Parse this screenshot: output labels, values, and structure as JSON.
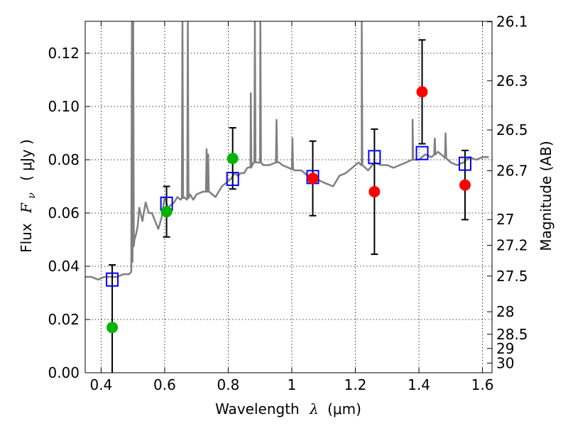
{
  "chart_data": {
    "type": "scatter",
    "x_axis": {
      "label": "Wavelength",
      "symbol": "λ",
      "unit": "(μm)",
      "range": [
        0.35,
        1.63
      ],
      "ticks": [
        0.4,
        0.6,
        0.8,
        1.0,
        1.2,
        1.4,
        1.6
      ],
      "tick_labels": [
        "0.4",
        "0.6",
        "0.8",
        "1",
        "1.2",
        "1.4",
        "1.6"
      ]
    },
    "y_axis_left": {
      "label_prefix": "Flux",
      "symbol": "F",
      "subscript": "ν",
      "unit": "( μJy )",
      "range": [
        0.0,
        0.132
      ],
      "ticks": [
        0.0,
        0.02,
        0.04,
        0.06,
        0.08,
        0.1,
        0.12
      ],
      "tick_labels": [
        "0.00",
        "0.02",
        "0.04",
        "0.06",
        "0.08",
        "0.10",
        "0.12"
      ]
    },
    "y_axis_right": {
      "label": "Magnitude (AB)",
      "scale": "AB magnitude",
      "tick_values": [
        26.1,
        26.3,
        26.5,
        26.7,
        27.0,
        27.2,
        27.5,
        28.0,
        28.5,
        29.0,
        30.0
      ],
      "tick_labels": [
        "26.1",
        "26.3",
        "26.5",
        "26.7",
        "27",
        "27.2",
        "27.5",
        "28",
        "28.5",
        "29",
        "30"
      ]
    },
    "grid": true,
    "series": [
      {
        "kind": "model-spectrum",
        "color": "#808080",
        "x": [
          0.35,
          0.37,
          0.39,
          0.41,
          0.43,
          0.45,
          0.47,
          0.488,
          0.495,
          0.5,
          0.505,
          0.51,
          0.515,
          0.52,
          0.53,
          0.54,
          0.55,
          0.56,
          0.57,
          0.58,
          0.59,
          0.6,
          0.61,
          0.62,
          0.63,
          0.64,
          0.65,
          0.66,
          0.67,
          0.68,
          0.69,
          0.7,
          0.72,
          0.74,
          0.76,
          0.78,
          0.79,
          0.8,
          0.81,
          0.82,
          0.83,
          0.84,
          0.85,
          0.86,
          0.87,
          0.88,
          0.89,
          0.9,
          0.91,
          0.93,
          0.95,
          0.96,
          0.97,
          0.99,
          1.01,
          1.03,
          1.05,
          1.07,
          1.09,
          1.11,
          1.13,
          1.15,
          1.17,
          1.19,
          1.2,
          1.21,
          1.22,
          1.24,
          1.26,
          1.28,
          1.3,
          1.32,
          1.34,
          1.36,
          1.38,
          1.4,
          1.42,
          1.44,
          1.46,
          1.48,
          1.5,
          1.52,
          1.54,
          1.56,
          1.58,
          1.6,
          1.62
        ],
        "y": [
          0.036,
          0.036,
          0.035,
          0.036,
          0.036,
          0.036,
          0.037,
          0.037,
          0.038,
          0.047,
          0.05,
          0.052,
          0.055,
          0.062,
          0.057,
          0.064,
          0.06,
          0.06,
          0.057,
          0.054,
          0.058,
          0.066,
          0.062,
          0.063,
          0.064,
          0.066,
          0.065,
          0.066,
          0.065,
          0.067,
          0.065,
          0.067,
          0.068,
          0.068,
          0.066,
          0.07,
          0.071,
          0.072,
          0.073,
          0.075,
          0.074,
          0.075,
          0.075,
          0.077,
          0.077,
          0.079,
          0.079,
          0.079,
          0.078,
          0.078,
          0.079,
          0.079,
          0.078,
          0.077,
          0.076,
          0.076,
          0.074,
          0.074,
          0.072,
          0.071,
          0.07,
          0.074,
          0.075,
          0.077,
          0.078,
          0.079,
          0.078,
          0.076,
          0.079,
          0.078,
          0.078,
          0.077,
          0.078,
          0.079,
          0.08,
          0.08,
          0.082,
          0.081,
          0.083,
          0.081,
          0.079,
          0.078,
          0.079,
          0.081,
          0.08,
          0.081,
          0.081
        ],
        "emission_lines": [
          {
            "x": 0.497,
            "peak": 0.132
          },
          {
            "x": 0.501,
            "peak": 0.132
          },
          {
            "x": 0.656,
            "peak": 0.132
          },
          {
            "x": 0.673,
            "peak": 0.132
          },
          {
            "x": 0.732,
            "peak": 0.084
          },
          {
            "x": 0.737,
            "peak": 0.082
          },
          {
            "x": 0.871,
            "peak": 0.105
          },
          {
            "x": 0.884,
            "peak": 0.132
          },
          {
            "x": 0.901,
            "peak": 0.132
          },
          {
            "x": 0.952,
            "peak": 0.095
          },
          {
            "x": 1.002,
            "peak": 0.088
          },
          {
            "x": 1.22,
            "peak": 0.132
          },
          {
            "x": 1.38,
            "peak": 0.095
          },
          {
            "x": 1.45,
            "peak": 0.088
          },
          {
            "x": 1.484,
            "peak": 0.09
          }
        ]
      },
      {
        "kind": "model-band-flux",
        "marker": "open-square",
        "color": "#0000ff",
        "x": [
          0.435,
          0.606,
          0.814,
          1.066,
          1.26,
          1.41,
          1.545
        ],
        "y": [
          0.035,
          0.0635,
          0.0728,
          0.0735,
          0.081,
          0.0825,
          0.0785
        ]
      },
      {
        "kind": "observed-optical",
        "marker": "filled-circle",
        "color": "#00b400",
        "x": [
          0.435,
          0.606,
          0.814
        ],
        "y": [
          0.017,
          0.0605,
          0.0805
        ],
        "err": [
          0.0235,
          0.0095,
          0.0115
        ]
      },
      {
        "kind": "observed-nir",
        "marker": "filled-circle",
        "color": "#ff0000",
        "x": [
          1.066,
          1.26,
          1.41,
          1.545
        ],
        "y": [
          0.073,
          0.068,
          0.1055,
          0.0705
        ],
        "err": [
          0.014,
          0.0235,
          0.0195,
          0.013
        ]
      }
    ]
  }
}
